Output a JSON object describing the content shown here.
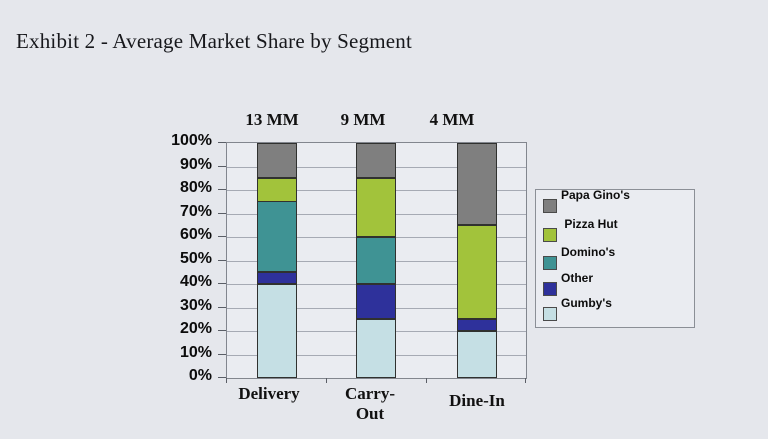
{
  "title": "Exhibit 2 - Average Market Share by Segment",
  "chart_data": {
    "type": "bar",
    "stacked": true,
    "title": "Exhibit 2 - Average Market Share by Segment",
    "categories": [
      "Delivery",
      "Carry-Out",
      "Dine-In"
    ],
    "x_tick_display_lines": [
      [
        "Delivery"
      ],
      [
        "Carry-",
        "Out"
      ],
      [
        "Dine-In"
      ]
    ],
    "category_annotations": [
      "13 MM",
      "9 MM",
      "4 MM"
    ],
    "series": [
      {
        "name": "Gumby's",
        "color": "#c5dfe4",
        "values": [
          40,
          25,
          20
        ]
      },
      {
        "name": "Other",
        "color": "#2e319b",
        "values": [
          5,
          15,
          5
        ]
      },
      {
        "name": "Domino's",
        "color": "#3f9394",
        "values": [
          30,
          20,
          0
        ]
      },
      {
        "name": "Pizza Hut",
        "color": "#a2c33b",
        "values": [
          10,
          25,
          40
        ]
      },
      {
        "name": "Papa Gino's",
        "color": "#7f7f7f",
        "values": [
          15,
          15,
          35
        ]
      }
    ],
    "y_axis": {
      "min": 0,
      "max": 100,
      "step": 10,
      "tick_labels": [
        "100%",
        "90%",
        "80%",
        "70%",
        "60%",
        "50%",
        "40%",
        "30%",
        "20%",
        "10%",
        "0%"
      ]
    },
    "grid": true,
    "legend": {
      "position": "right",
      "entries": [
        {
          "label": "Papa Gino's",
          "series": "Papa Gino's",
          "color": "#7f7f7f"
        },
        {
          "label": " Pizza Hut",
          "series": "Pizza Hut",
          "color": "#a2c33b"
        },
        {
          "label": "Domino's",
          "series": "Domino's",
          "color": "#3f9394"
        },
        {
          "label": "Other",
          "series": "Other",
          "color": "#2e319b"
        },
        {
          "label": "Gumby's",
          "series": "Gumby's",
          "color": "#c5dfe4"
        }
      ]
    }
  }
}
